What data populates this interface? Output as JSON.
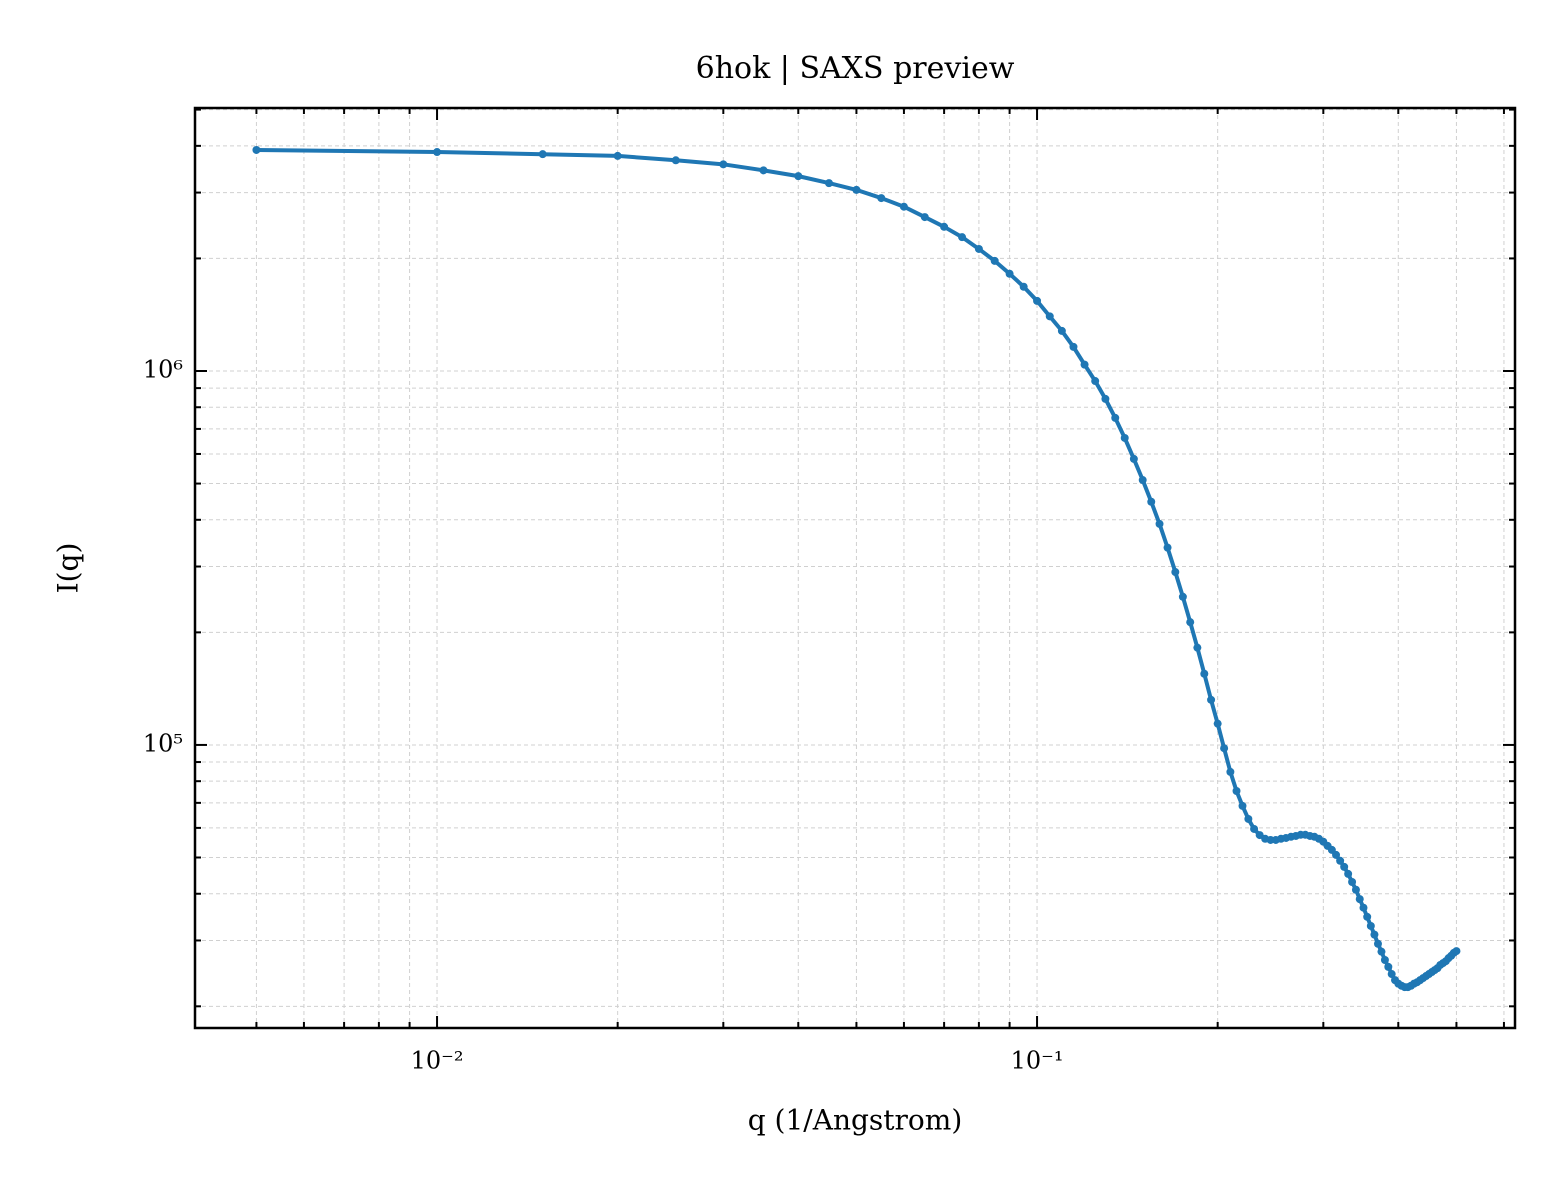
{
  "chart_data": {
    "type": "line",
    "title": "6hok | SAXS preview",
    "xlabel": "q (1/Angstrom)",
    "ylabel": "I(q)",
    "xscale": "log",
    "yscale": "log",
    "grid": true,
    "color": "#1f77b4",
    "markers": true,
    "xlim": [
      0.00395,
      0.626
    ],
    "ylim": [
      17500,
      5050000
    ],
    "xticks": [
      {
        "value": 0.01,
        "label": "10⁻²"
      },
      {
        "value": 0.1,
        "label": "10⁻¹"
      }
    ],
    "yticks": [
      {
        "value": 100000,
        "label": "10⁵"
      },
      {
        "value": 1000000,
        "label": "10⁶"
      }
    ],
    "xminorticks": [
      0.005,
      0.006,
      0.007,
      0.008,
      0.009,
      0.02,
      0.03,
      0.04,
      0.05,
      0.06,
      0.07,
      0.08,
      0.09,
      0.2,
      0.3,
      0.4,
      0.5,
      0.6
    ],
    "yminorticks": [
      20000,
      30000,
      40000,
      50000,
      60000,
      70000,
      80000,
      90000,
      200000,
      300000,
      400000,
      500000,
      600000,
      700000,
      800000,
      900000,
      2000000,
      3000000,
      4000000,
      5000000
    ],
    "x": [
      0.005,
      0.01,
      0.015,
      0.02,
      0.025,
      0.03,
      0.035,
      0.04,
      0.045,
      0.05,
      0.055,
      0.06,
      0.065,
      0.07,
      0.075,
      0.08,
      0.085,
      0.09,
      0.095,
      0.1,
      0.105,
      0.11,
      0.115,
      0.12,
      0.125,
      0.13,
      0.135,
      0.14,
      0.145,
      0.15,
      0.155,
      0.16,
      0.165,
      0.17,
      0.175,
      0.18,
      0.185,
      0.19,
      0.195,
      0.2,
      0.205,
      0.21,
      0.215,
      0.22,
      0.225,
      0.23,
      0.235,
      0.24,
      0.245,
      0.25,
      0.255,
      0.26,
      0.265,
      0.27,
      0.275,
      0.28,
      0.285,
      0.29,
      0.295,
      0.3,
      0.305,
      0.31,
      0.315,
      0.32,
      0.325,
      0.33,
      0.335,
      0.34,
      0.345,
      0.35,
      0.355,
      0.36,
      0.365,
      0.37,
      0.375,
      0.38,
      0.385,
      0.39,
      0.395,
      0.4,
      0.405,
      0.41,
      0.415,
      0.42,
      0.425,
      0.43,
      0.435,
      0.44,
      0.445,
      0.45,
      0.455,
      0.46,
      0.465,
      0.47,
      0.475,
      0.48,
      0.485,
      0.49,
      0.495,
      0.5
    ],
    "values": [
      3900000,
      3850000,
      3800000,
      3760000,
      3660000,
      3570000,
      3440000,
      3320000,
      3180000,
      3050000,
      2900000,
      2750000,
      2580000,
      2430000,
      2280000,
      2120000,
      1970000,
      1820000,
      1680000,
      1540000,
      1400000,
      1280000,
      1160000,
      1040000,
      940000,
      842000,
      749000,
      662000,
      582000,
      511000,
      447000,
      390000,
      337000,
      290000,
      249000,
      213000,
      182000,
      155000,
      132000,
      114000,
      98000,
      84700,
      75300,
      68700,
      63400,
      59600,
      57400,
      56100,
      55700,
      55700,
      56100,
      56400,
      56800,
      57100,
      57500,
      57500,
      57100,
      56800,
      56100,
      55100,
      53700,
      52400,
      50800,
      49000,
      47200,
      45200,
      43000,
      41000,
      38700,
      36700,
      34700,
      32800,
      31100,
      29400,
      28000,
      26600,
      25500,
      24400,
      23500,
      23000,
      22700,
      22500,
      22500,
      22700,
      23000,
      23200,
      23500,
      23800,
      24100,
      24400,
      24700,
      25000,
      25300,
      25800,
      26100,
      26400,
      26900,
      27300,
      27800,
      28100
    ]
  }
}
